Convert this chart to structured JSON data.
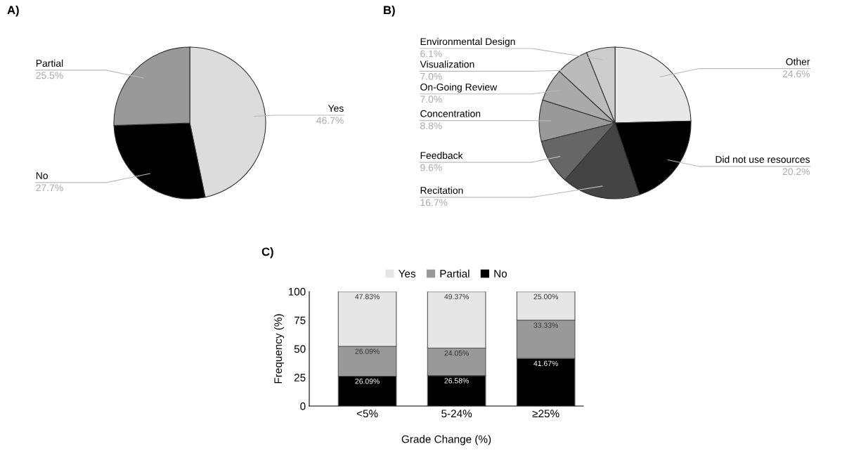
{
  "chart_data": [
    {
      "type": "pie",
      "title": "A)",
      "categories": [
        "Yes",
        "No",
        "Partial"
      ],
      "values": [
        46.7,
        27.7,
        25.5
      ],
      "colors": [
        "#dcdcdc",
        "#000000",
        "#999999"
      ],
      "value_labels": [
        "46.7%",
        "27.7%",
        "25.5%"
      ]
    },
    {
      "type": "pie",
      "title": "B)",
      "categories": [
        "Other",
        "Did not use resources",
        "Recitation",
        "Feedback",
        "Concentration",
        "On-Going Review",
        "Visualization",
        "Environmental Design"
      ],
      "values": [
        24.6,
        20.2,
        16.7,
        9.6,
        8.8,
        7.0,
        7.0,
        6.1
      ],
      "colors": [
        "#e8e8e8",
        "#000000",
        "#444444",
        "#666666",
        "#999999",
        "#aaaaaa",
        "#bbbbbb",
        "#cccccc"
      ],
      "value_labels": [
        "24.6%",
        "20.2%",
        "16.7%",
        "9.6%",
        "8.8%",
        "7.0%",
        "7.0%",
        "6.1%"
      ]
    },
    {
      "type": "bar",
      "title": "C)",
      "xlabel": "Grade Change (%)",
      "ylabel": "Frequency (%)",
      "categories": [
        "<5%",
        "5-24%",
        "≥25%"
      ],
      "stacked": true,
      "ylim": [
        0,
        100
      ],
      "yticks": [
        0,
        25,
        50,
        75,
        100
      ],
      "legend": "top",
      "grid": false,
      "series": [
        {
          "name": "No",
          "color": "#000000",
          "values": [
            26.09,
            26.58,
            41.67
          ],
          "value_labels": [
            "26.09%",
            "26.58%",
            "41.67%"
          ]
        },
        {
          "name": "Partial",
          "color": "#999999",
          "values": [
            26.09,
            24.05,
            33.33
          ],
          "value_labels": [
            "26.09%",
            "24.05%",
            "33.33%"
          ]
        },
        {
          "name": "Yes",
          "color": "#e6e6e6",
          "values": [
            47.83,
            49.37,
            25.0
          ],
          "value_labels": [
            "47.83%",
            "49.37%",
            "25.00%"
          ]
        }
      ]
    }
  ]
}
